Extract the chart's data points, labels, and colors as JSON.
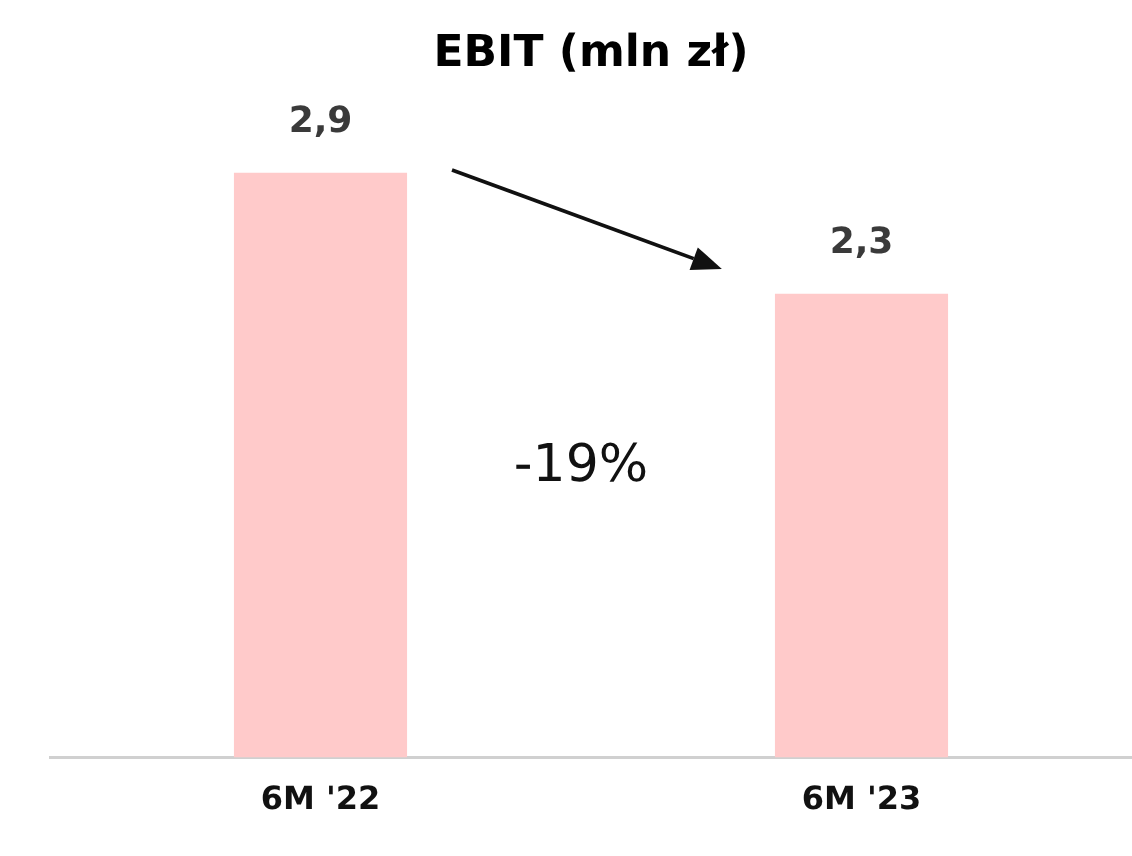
{
  "chart_data": {
    "type": "bar",
    "title": "EBIT (mln zł)",
    "categories": [
      "6M '22",
      "6M '23"
    ],
    "values": [
      2.9,
      2.3
    ],
    "color": "#ffcaca",
    "value_labels": [
      "2,9",
      "2,3"
    ],
    "annotations": [
      "-19%"
    ]
  }
}
